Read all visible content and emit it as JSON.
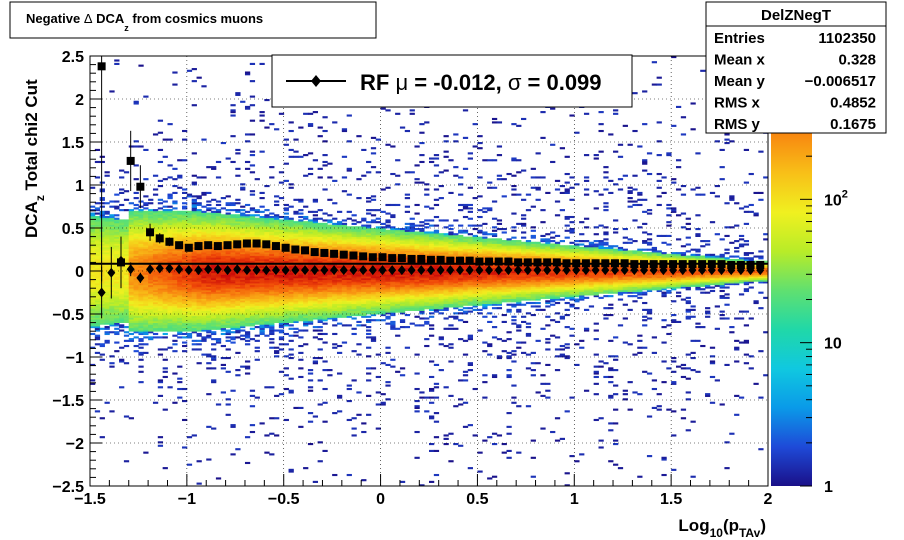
{
  "chart_data": {
    "type": "heatmap",
    "title": {
      "prefix": "Negative ",
      "delta": "Δ",
      "dca": " DCA",
      "sub": "z",
      "suffix": " from cosmics muons"
    },
    "xlabel": {
      "main": "Log",
      "sub1": "10",
      "mid": "(p",
      "sub2": "TAv",
      "end": ")"
    },
    "ylabel": {
      "main": "DCA",
      "sub": "z",
      "rest": "   Total chi2 Cut"
    },
    "xlim": [
      -1.5,
      2.0
    ],
    "ylim": [
      -2.5,
      2.5
    ],
    "x_ticks": [
      {
        "v": -1.5,
        "label": "−1.5"
      },
      {
        "v": -1,
        "label": "−1"
      },
      {
        "v": -0.5,
        "label": "−0.5"
      },
      {
        "v": 0,
        "label": "0"
      },
      {
        "v": 0.5,
        "label": "0.5"
      },
      {
        "v": 1,
        "label": "1"
      },
      {
        "v": 1.5,
        "label": "1.5"
      },
      {
        "v": 2,
        "label": "2"
      }
    ],
    "y_ticks": [
      {
        "v": -2.5,
        "label": "−2.5"
      },
      {
        "v": -2,
        "label": "−2"
      },
      {
        "v": -1.5,
        "label": "−1.5"
      },
      {
        "v": -1,
        "label": "−1"
      },
      {
        "v": -0.5,
        "label": "−0.5"
      },
      {
        "v": 0,
        "label": "0"
      },
      {
        "v": 0.5,
        "label": "0.5"
      },
      {
        "v": 1,
        "label": "1"
      },
      {
        "v": 1.5,
        "label": "1.5"
      },
      {
        "v": 2,
        "label": "2"
      },
      {
        "v": 2.5,
        "label": "2.5"
      }
    ],
    "grid": true,
    "colorbar": {
      "scale": "log",
      "range": [
        1,
        1000
      ],
      "labels": [
        {
          "v": 1,
          "label": "1"
        },
        {
          "v": 10,
          "label": "10"
        },
        {
          "v": 100,
          "base": "10",
          "exp": "2"
        }
      ],
      "colors": [
        "#1a1088",
        "#1e4ad8",
        "#0a9ae8",
        "#10c8e0",
        "#20d8a8",
        "#60e070",
        "#b8ec28",
        "#f0f020",
        "#f8c018",
        "#f88810",
        "#f04808",
        "#c80808"
      ]
    },
    "stats": {
      "name": "DelZNegT",
      "rows": [
        {
          "label": "Entries",
          "value": "1102350"
        },
        {
          "label": "Mean x",
          "value": "0.328"
        },
        {
          "label": "Mean y",
          "value": "−0.006517"
        },
        {
          "label": "RMS x",
          "value": "0.4852"
        },
        {
          "label": "RMS y",
          "value": "0.1675"
        }
      ]
    },
    "legend": {
      "placement": "top-center",
      "prefix": "RF ",
      "mu": "μ",
      "mid": " = -0.012, ",
      "sigma": "σ",
      "end": " =   0.099"
    },
    "band": {
      "center": 0.0,
      "sigma_low_x": 0.37,
      "sigma_high_x": 0.05,
      "sigma_x_ref": [
        -1.5,
        2.0
      ]
    },
    "reference_line_y": 0.085,
    "series": [
      {
        "marker": "square",
        "x": [
          -1.44,
          -1.34,
          -1.29,
          -1.24,
          -1.19,
          -1.14,
          -1.09,
          -1.04,
          -0.99,
          -0.94,
          -0.89,
          -0.84,
          -0.79,
          -0.74,
          -0.69,
          -0.64,
          -0.59,
          -0.54,
          -0.49,
          -0.44,
          -0.39,
          -0.34,
          -0.29,
          -0.24,
          -0.19,
          -0.14,
          -0.09,
          -0.04,
          0.01,
          0.06,
          0.11,
          0.16,
          0.21,
          0.26,
          0.31,
          0.36,
          0.41,
          0.46,
          0.51,
          0.56,
          0.61,
          0.66,
          0.71,
          0.76,
          0.81,
          0.86,
          0.91,
          0.96,
          1.01,
          1.06,
          1.11,
          1.16,
          1.21,
          1.26,
          1.31,
          1.36,
          1.41,
          1.46,
          1.51,
          1.56,
          1.61,
          1.66,
          1.71,
          1.76,
          1.81,
          1.86,
          1.91,
          1.96
        ],
        "y": [
          2.38,
          0.1,
          1.28,
          0.98,
          0.45,
          0.38,
          0.34,
          0.3,
          0.27,
          0.29,
          0.3,
          0.29,
          0.3,
          0.31,
          0.32,
          0.32,
          0.31,
          0.29,
          0.27,
          0.25,
          0.24,
          0.22,
          0.21,
          0.2,
          0.19,
          0.18,
          0.17,
          0.16,
          0.16,
          0.15,
          0.15,
          0.14,
          0.14,
          0.13,
          0.13,
          0.12,
          0.12,
          0.12,
          0.11,
          0.11,
          0.11,
          0.11,
          0.1,
          0.1,
          0.1,
          0.1,
          0.1,
          0.09,
          0.09,
          0.09,
          0.09,
          0.09,
          0.09,
          0.09,
          0.08,
          0.08,
          0.08,
          0.08,
          0.08,
          0.08,
          0.08,
          0.08,
          0.08,
          0.08,
          0.07,
          0.07,
          0.07,
          0.07
        ],
        "err": [
          2.5,
          0.3,
          0.35,
          0.25,
          0.1,
          0.06,
          0.05,
          0.04,
          0.04,
          0.03,
          0.03,
          0.03,
          0.02,
          0.02,
          0.02,
          0.02,
          0.02,
          0.02,
          0.01,
          0.01,
          0.01,
          0.01,
          0.01,
          0.01,
          0.01,
          0.01,
          0.01,
          0.01,
          0.01,
          0.01,
          0.01,
          0.01,
          0.01,
          0.01,
          0.01,
          0.01,
          0.01,
          0.01,
          0.01,
          0.01,
          0.01,
          0.01,
          0.01,
          0.01,
          0.01,
          0.01,
          0.01,
          0.01,
          0.01,
          0.01,
          0.01,
          0.01,
          0.01,
          0.01,
          0.01,
          0.01,
          0.01,
          0.01,
          0.01,
          0.01,
          0.01,
          0.01,
          0.01,
          0.01,
          0.01,
          0.01,
          0.01,
          0.01
        ]
      },
      {
        "marker": "diamond",
        "x": [
          -1.44,
          -1.39,
          -1.34,
          -1.29,
          -1.24,
          -1.19,
          -1.14,
          -1.09,
          -1.04,
          -0.99,
          -0.94,
          -0.89,
          -0.84,
          -0.79,
          -0.74,
          -0.69,
          -0.64,
          -0.59,
          -0.54,
          -0.49,
          -0.44,
          -0.39,
          -0.34,
          -0.29,
          -0.24,
          -0.19,
          -0.14,
          -0.09,
          -0.04,
          0.01,
          0.06,
          0.11,
          0.16,
          0.21,
          0.26,
          0.31,
          0.36,
          0.41,
          0.46,
          0.51,
          0.56,
          0.61,
          0.66,
          0.71,
          0.76,
          0.81,
          0.86,
          0.91,
          0.96,
          1.01,
          1.06,
          1.11,
          1.16,
          1.21,
          1.26,
          1.31,
          1.36,
          1.41,
          1.46,
          1.51,
          1.56,
          1.61,
          1.66,
          1.71,
          1.76,
          1.81,
          1.86,
          1.91,
          1.96
        ],
        "y": [
          -0.25,
          -0.02,
          0.12,
          0.02,
          -0.08,
          0.02,
          0.03,
          0.03,
          0.02,
          0.01,
          0.01,
          0.02,
          0.02,
          0.01,
          0.02,
          0.01,
          0.01,
          0.01,
          0.01,
          0.01,
          0.01,
          0.01,
          0.01,
          0.01,
          0.01,
          0.01,
          0.01,
          0.01,
          0.01,
          0.01,
          0.01,
          0.01,
          0.01,
          0.01,
          0.01,
          0.01,
          0.01,
          0.01,
          0.01,
          0.01,
          0.01,
          0.01,
          0.01,
          0.01,
          0.01,
          0.01,
          0.01,
          0.01,
          0.01,
          0.01,
          0.01,
          0.01,
          0.01,
          0.01,
          0.01,
          0.01,
          0.01,
          0.01,
          0.01,
          0.01,
          0.01,
          0.01,
          0.01,
          0.01,
          0.01,
          0.01,
          0.01,
          0.01,
          0.01
        ],
        "err": [
          0.3,
          0.3,
          0.12,
          0.08,
          0.06,
          0.05,
          0.04,
          0.03,
          0.03,
          0.02,
          0.02,
          0.02,
          0.02,
          0.02,
          0.02,
          0.01,
          0.01,
          0.01,
          0.01,
          0.01,
          0.01,
          0.01,
          0.01,
          0.01,
          0.01,
          0.01,
          0.01,
          0.01,
          0.01,
          0.01,
          0.01,
          0.01,
          0.01,
          0.01,
          0.01,
          0.01,
          0.01,
          0.01,
          0.01,
          0.01,
          0.01,
          0.01,
          0.01,
          0.01,
          0.01,
          0.01,
          0.01,
          0.01,
          0.01,
          0.01,
          0.01,
          0.01,
          0.01,
          0.01,
          0.01,
          0.01,
          0.01,
          0.01,
          0.01,
          0.01,
          0.01,
          0.01,
          0.01,
          0.01,
          0.01,
          0.01,
          0.01,
          0.01,
          0.01
        ]
      }
    ]
  }
}
